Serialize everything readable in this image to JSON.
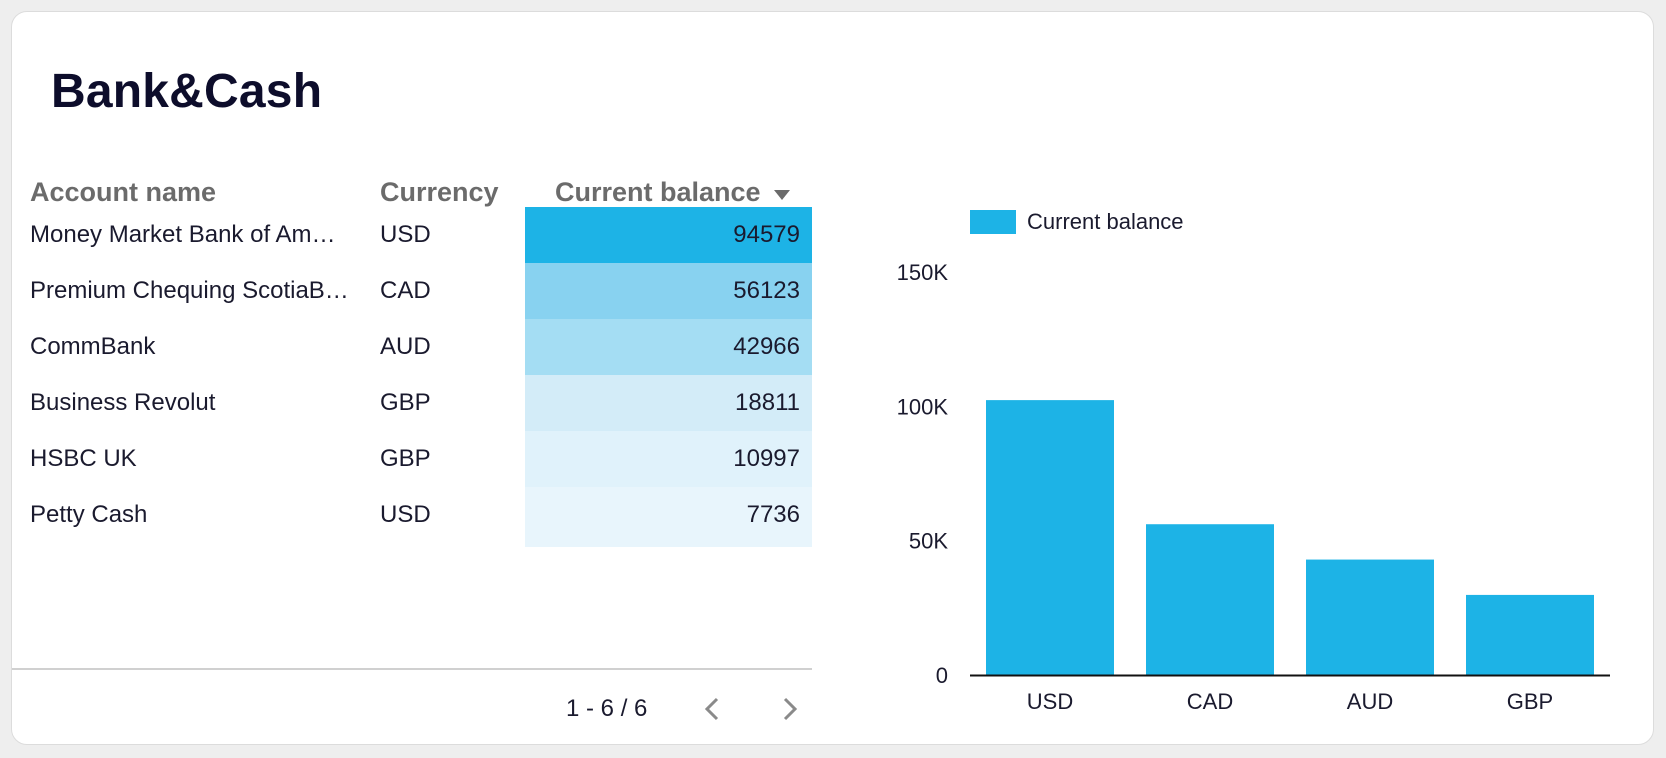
{
  "card": {
    "title": "Bank&Cash"
  },
  "table": {
    "columns": {
      "name": "Account name",
      "currency": "Currency",
      "balance": "Current balance"
    },
    "sort_icon": "triangle-down-icon",
    "rows": [
      {
        "name": "Money Market Bank of Am…",
        "currency": "USD",
        "balance": "94579",
        "shade": "#1db3e6"
      },
      {
        "name": "Premium Chequing ScotiaB…",
        "currency": "CAD",
        "balance": "56123",
        "shade": "#88d2f0"
      },
      {
        "name": "CommBank",
        "currency": "AUD",
        "balance": "42966",
        "shade": "#a4ddf3"
      },
      {
        "name": "Business Revolut",
        "currency": "GBP",
        "balance": "18811",
        "shade": "#d3ecf8"
      },
      {
        "name": "HSBC UK",
        "currency": "GBP",
        "balance": "10997",
        "shade": "#e0f2fb"
      },
      {
        "name": "Petty Cash",
        "currency": "USD",
        "balance": "7736",
        "shade": "#e8f5fc"
      }
    ],
    "pager": {
      "text": "1 - 6 / 6",
      "prev_icon": "chevron-left-icon",
      "next_icon": "chevron-right-icon"
    }
  },
  "chart_data": {
    "type": "bar",
    "categories": [
      "USD",
      "CAD",
      "AUD",
      "GBP"
    ],
    "series": [
      {
        "name": "Current balance",
        "values": [
          102315,
          56123,
          42966,
          29808
        ],
        "color": "#1db3e6"
      }
    ],
    "yticks": [
      {
        "value": 0,
        "label": "0"
      },
      {
        "value": 50000,
        "label": "50K"
      },
      {
        "value": 100000,
        "label": "100K"
      },
      {
        "value": 150000,
        "label": "150K"
      }
    ],
    "ylim": [
      0,
      150000
    ],
    "legend_position": "top-left",
    "grid": false
  }
}
